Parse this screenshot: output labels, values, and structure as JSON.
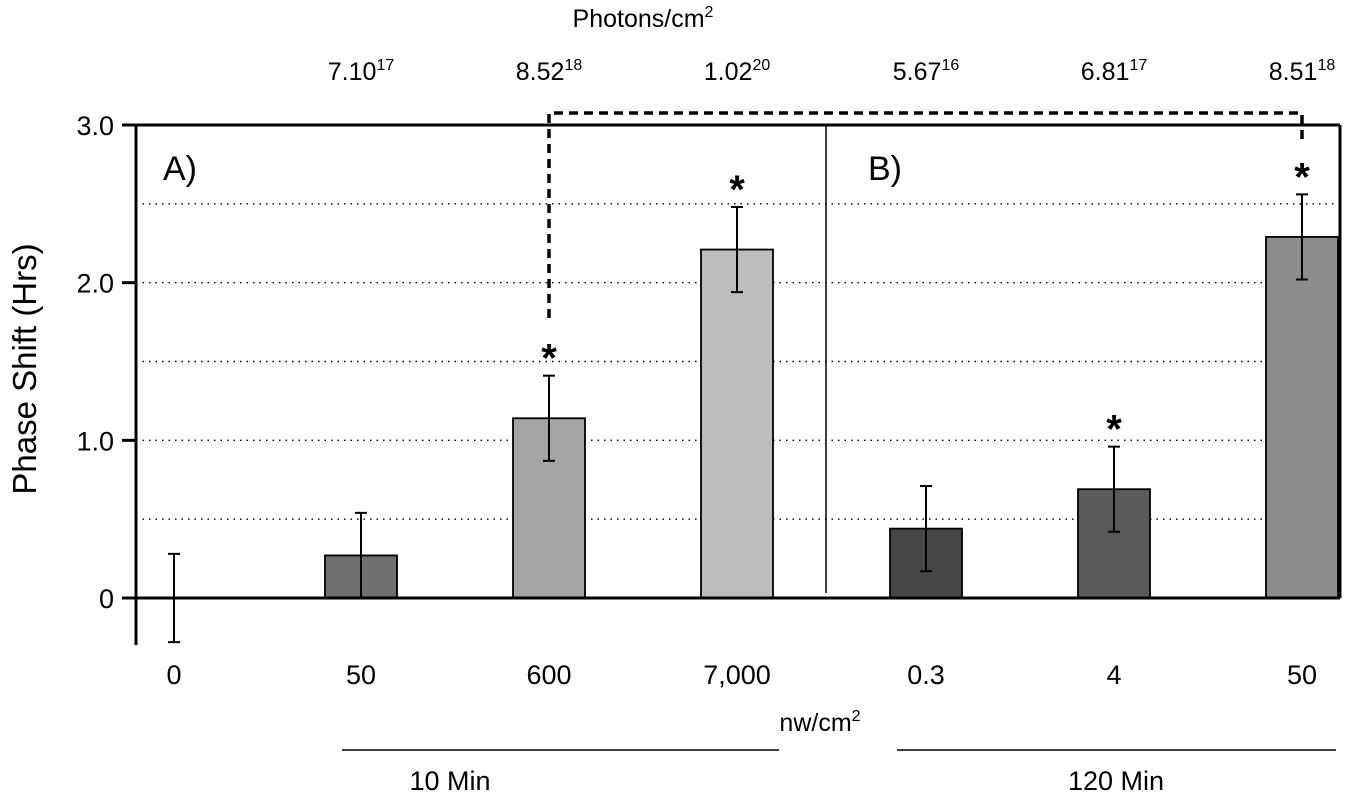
{
  "chart_data": {
    "type": "bar",
    "ylabel": "Phase Shift (Hrs)",
    "top_axis_label_base": "Photons/cm",
    "top_axis_label_sup": "2",
    "x_unit_label_base": "nw/cm",
    "x_unit_label_sup": "2",
    "ylim": [
      -0.3,
      3.0
    ],
    "y_ticks": [
      {
        "value": 0,
        "label": "0"
      },
      {
        "value": 1.0,
        "label": "1.0"
      },
      {
        "value": 2.0,
        "label": "2.0"
      },
      {
        "value": 3.0,
        "label": "3.0"
      }
    ],
    "grid_lines": [
      0.5,
      1.0,
      1.5,
      2.0,
      2.5
    ],
    "grid": "dotted horizontal",
    "panels": [
      {
        "label": "A)",
        "group_label": "10 Min"
      },
      {
        "label": "B)",
        "group_label": "120 Min"
      }
    ],
    "categories": [
      "0",
      "50",
      "600",
      "7,000",
      "0.3",
      "4",
      "50"
    ],
    "values": [
      0.0,
      0.27,
      1.14,
      2.21,
      0.44,
      0.69,
      2.29
    ],
    "error": [
      0.28,
      0.27,
      0.27,
      0.27,
      0.27,
      0.27,
      0.27
    ],
    "significant": [
      false,
      false,
      true,
      true,
      false,
      true,
      true
    ],
    "colors": [
      "#ffffff",
      "#6f6f6f",
      "#a4a4a4",
      "#bdbdbd",
      "#474747",
      "#5a5a5a",
      "#8c8c8c"
    ],
    "photons": [
      {
        "base": "7.10",
        "exp": "17"
      },
      {
        "base": "8.52",
        "exp": "18"
      },
      {
        "base": "1.02",
        "exp": "20"
      },
      {
        "base": "5.67",
        "exp": "16"
      },
      {
        "base": "6.81",
        "exp": "17"
      },
      {
        "base": "8.51",
        "exp": "18"
      }
    ],
    "significance_symbol": "*",
    "comparison_bracket": {
      "from_category_index": 2,
      "to_category_index": 6,
      "style": "dashed"
    }
  }
}
